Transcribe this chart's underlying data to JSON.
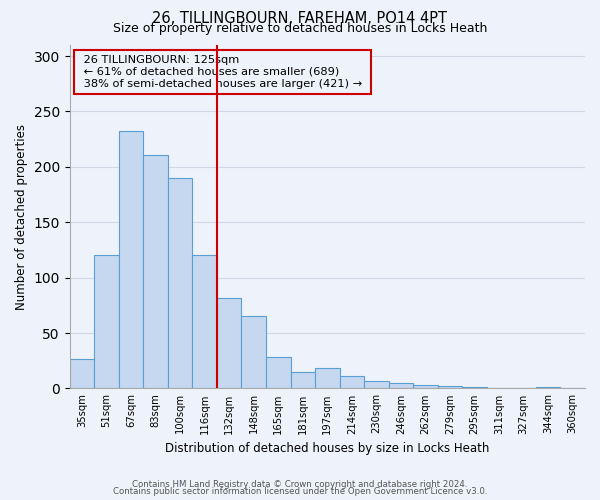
{
  "title1": "26, TILLINGBOURN, FAREHAM, PO14 4PT",
  "title2": "Size of property relative to detached houses in Locks Heath",
  "xlabel": "Distribution of detached houses by size in Locks Heath",
  "ylabel": "Number of detached properties",
  "categories": [
    "35sqm",
    "51sqm",
    "67sqm",
    "83sqm",
    "100sqm",
    "116sqm",
    "132sqm",
    "148sqm",
    "165sqm",
    "181sqm",
    "197sqm",
    "214sqm",
    "230sqm",
    "246sqm",
    "262sqm",
    "279sqm",
    "295sqm",
    "311sqm",
    "327sqm",
    "344sqm",
    "360sqm"
  ],
  "values": [
    27,
    120,
    232,
    211,
    190,
    120,
    82,
    65,
    28,
    15,
    18,
    11,
    7,
    5,
    3,
    2,
    1,
    0,
    0,
    1,
    0
  ],
  "bar_color": "#c5d8f0",
  "bar_edge_color": "#5a9fd4",
  "grid_color": "#d0d8e8",
  "ref_line_x": 5.5,
  "ref_line_color": "#cc0000",
  "annotation_title": "26 TILLINGBOURN: 125sqm",
  "annotation_line1": "← 61% of detached houses are smaller (689)",
  "annotation_line2": "38% of semi-detached houses are larger (421) →",
  "annotation_box_color": "#cc0000",
  "footer1": "Contains HM Land Registry data © Crown copyright and database right 2024.",
  "footer2": "Contains public sector information licensed under the Open Government Licence v3.0.",
  "ylim": [
    0,
    310
  ],
  "yticks": [
    0,
    50,
    100,
    150,
    200,
    250,
    300
  ],
  "bg_color": "#eef2fa"
}
